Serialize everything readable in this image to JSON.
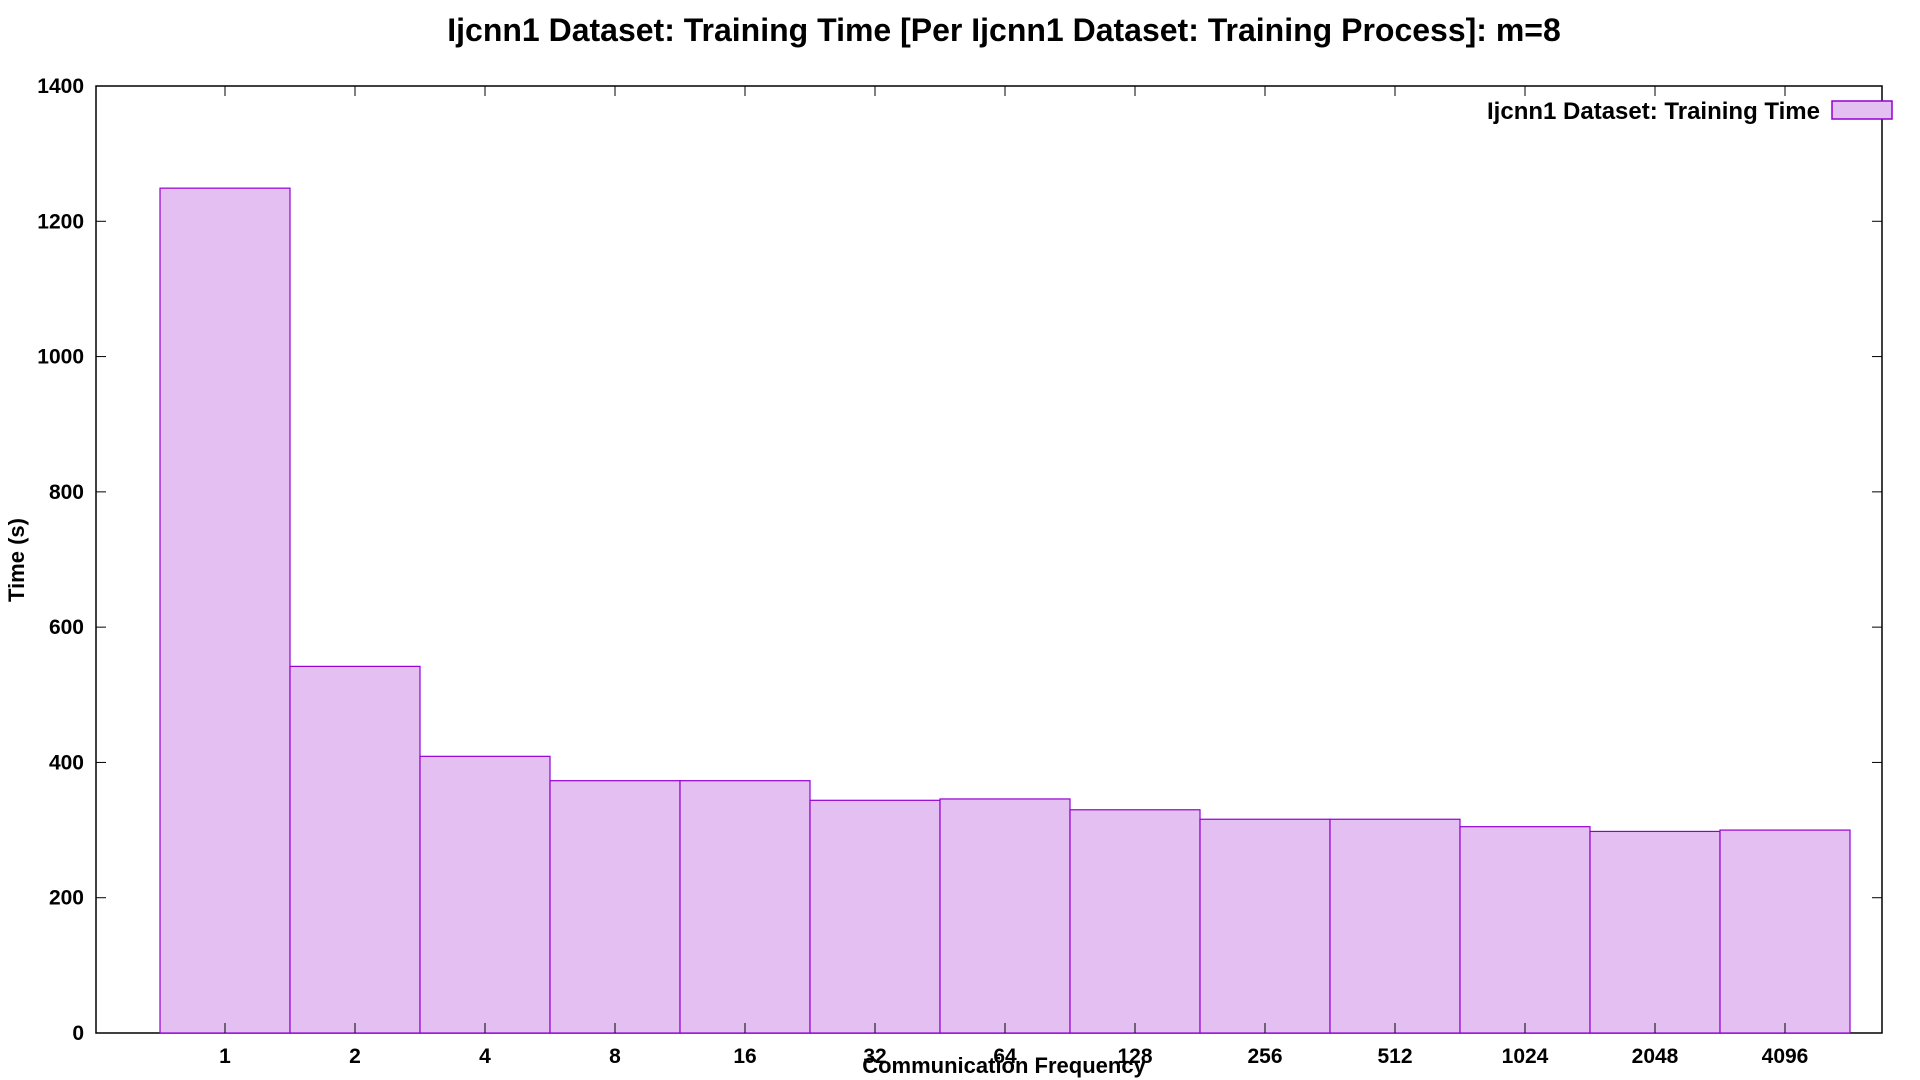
{
  "chart_data": {
    "type": "bar",
    "title": "Ijcnn1 Dataset: Training Time [Per Ijcnn1 Dataset: Training Process]: m=8",
    "xlabel": "Communication Frequency",
    "ylabel": "Time (s)",
    "categories": [
      "1",
      "2",
      "4",
      "8",
      "16",
      "32",
      "64",
      "128",
      "256",
      "512",
      "1024",
      "2048",
      "4096"
    ],
    "series": [
      {
        "name": "Ijcnn1 Dataset: Training Time",
        "values": [
          1249,
          542,
          409,
          373,
          373,
          344,
          346,
          330,
          316,
          316,
          305,
          298,
          300
        ],
        "color": "#e4bff2",
        "stroke": "#9400d3"
      }
    ],
    "ylim": [
      0,
      1400
    ],
    "yticks": [
      0,
      200,
      400,
      600,
      800,
      1000,
      1200,
      1400
    ],
    "grid": false,
    "legend_position": "top-right"
  }
}
